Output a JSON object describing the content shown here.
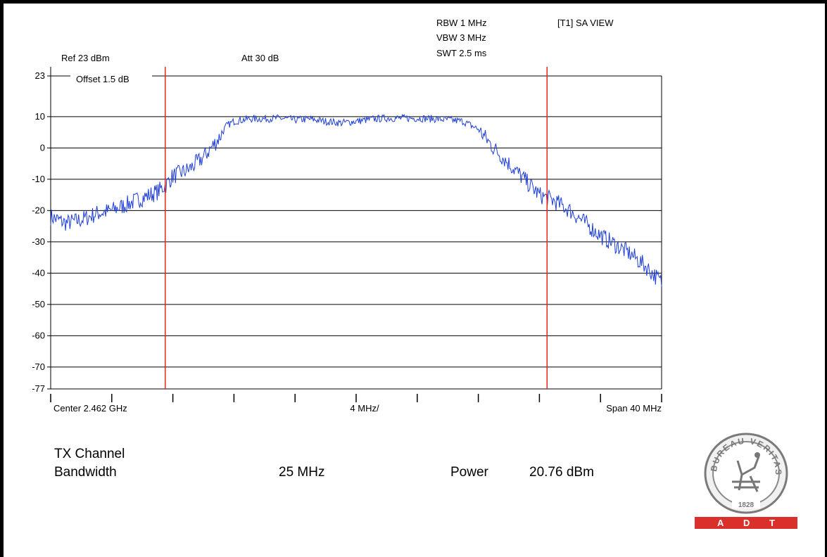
{
  "header": {
    "ref": "Ref 23 dBm",
    "att": "Att  30 dB",
    "rbw": "RBW 1 MHz",
    "vbw": "VBW 3 MHz",
    "swt": "SWT 2.5 ms",
    "view": "[T1] SA VIEW",
    "offset": "Offset 1.5 dB"
  },
  "chart_data": {
    "type": "line",
    "title": "",
    "xlabel": "",
    "ylabel": "",
    "x_unit": "MHz",
    "xlim": [
      2442,
      2482
    ],
    "ylim": [
      -77,
      23
    ],
    "y_tick_labels": [
      "23",
      "10",
      "0",
      "-10",
      "-20",
      "-30",
      "-40",
      "-50",
      "-60",
      "-70",
      "-77"
    ],
    "y_ticks": [
      23,
      10,
      0,
      -10,
      -20,
      -30,
      -40,
      -50,
      -60,
      -70,
      -77
    ],
    "x_tick_labels": {
      "left": "Center 2.462 GHz",
      "center": "4 MHz/",
      "right": "Span 40 MHz"
    },
    "x_ticks": [
      2442,
      2446,
      2450,
      2454,
      2458,
      2462,
      2466,
      2470,
      2474,
      2478,
      2482
    ],
    "grid": true,
    "channel_lines": [
      2449.5,
      2474.5
    ],
    "trace_color": "#1f3fd6",
    "channel_line_color": "#e8261f",
    "series": [
      {
        "x": [
          2442,
          2443,
          2444,
          2445,
          2446,
          2447,
          2448,
          2449,
          2449.5,
          2450,
          2451,
          2452,
          2453,
          2453.5,
          2454,
          2455,
          2456,
          2457,
          2458,
          2459,
          2460,
          2461,
          2462,
          2463,
          2464,
          2465,
          2466,
          2467,
          2468,
          2469,
          2470,
          2471,
          2472,
          2473,
          2474,
          2475,
          2476,
          2477,
          2478,
          2479,
          2480,
          2481,
          2482
        ],
        "y": [
          -22,
          -24,
          -23,
          -21,
          -20,
          -18,
          -16,
          -14,
          -12,
          -9,
          -7,
          -3,
          3,
          7,
          8.5,
          9.3,
          9.3,
          9.5,
          9,
          9.2,
          8.5,
          8,
          8.5,
          9.2,
          9.5,
          9.5,
          9.5,
          9.3,
          9,
          8.5,
          6,
          0,
          -5,
          -10,
          -15,
          -17,
          -20,
          -24,
          -28,
          -31,
          -34,
          -38,
          -43
        ]
      }
    ]
  },
  "measurement": {
    "label_line1": "TX Channel",
    "label_line2": "Bandwidth",
    "bandwidth": "25 MHz",
    "power_label": "Power",
    "power_value": "20.76 dBm"
  },
  "logo": {
    "text": "BUREAU VERITAS",
    "year": "1828",
    "bar_letters": [
      "A",
      "D",
      "T"
    ],
    "bar_color": "#d9302c"
  }
}
